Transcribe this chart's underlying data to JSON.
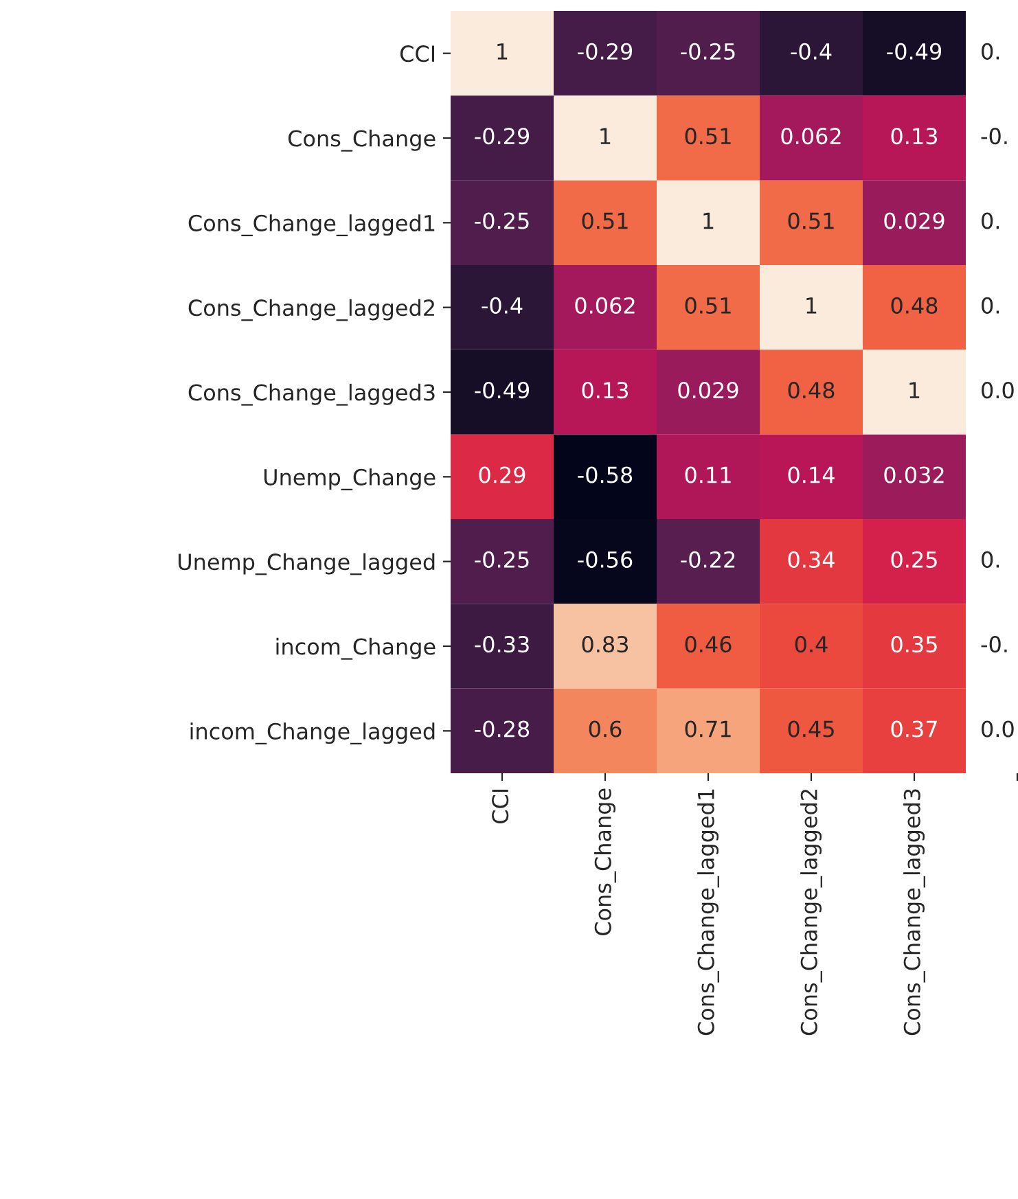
{
  "chart_data": {
    "type": "heatmap",
    "categories": [
      "CCI",
      "Cons_Change",
      "Cons_Change_lagged1",
      "Cons_Change_lagged2",
      "Cons_Change_lagged3",
      null
    ],
    "y_categories": [
      "CCI",
      "Cons_Change",
      "Cons_Change_lagged1",
      "Cons_Change_lagged2",
      "Cons_Change_lagged3",
      "Unemp_Change",
      "Unemp_Change_lagged",
      "incom_Change",
      "incom_Change_lagged"
    ],
    "cells": [
      [
        1,
        -0.29,
        -0.25,
        -0.4,
        -0.49,
        null
      ],
      [
        -0.29,
        1,
        0.51,
        0.062,
        0.13,
        null
      ],
      [
        -0.25,
        0.51,
        1,
        0.51,
        0.029,
        null
      ],
      [
        -0.4,
        0.062,
        0.51,
        1,
        0.48,
        null
      ],
      [
        -0.49,
        0.13,
        0.029,
        0.48,
        1,
        null
      ],
      [
        0.29,
        -0.58,
        0.11,
        0.14,
        0.032,
        null
      ],
      [
        -0.25,
        -0.56,
        -0.22,
        0.34,
        0.25,
        null
      ],
      [
        -0.33,
        0.83,
        0.46,
        0.4,
        0.35,
        null
      ],
      [
        -0.28,
        0.6,
        0.71,
        0.45,
        0.37,
        null
      ]
    ],
    "cell_labels": [
      [
        "1",
        "-0.29",
        "-0.25",
        "-0.4",
        "-0.49",
        "0."
      ],
      [
        "-0.29",
        "1",
        "0.51",
        "0.062",
        "0.13",
        "-0."
      ],
      [
        "-0.25",
        "0.51",
        "1",
        "0.51",
        "0.029",
        "0."
      ],
      [
        "-0.4",
        "0.062",
        "0.51",
        "1",
        "0.48",
        "0."
      ],
      [
        "-0.49",
        "0.13",
        "0.029",
        "0.48",
        "1",
        "0.0"
      ],
      [
        "0.29",
        "-0.58",
        "0.11",
        "0.14",
        "0.032",
        null
      ],
      [
        "-0.25",
        "-0.56",
        "-0.22",
        "0.34",
        "0.25",
        "0."
      ],
      [
        "-0.33",
        "0.83",
        "0.46",
        "0.4",
        "0.35",
        "-0."
      ],
      [
        "-0.28",
        "0.6",
        "0.71",
        "0.45",
        "0.37",
        "0.0"
      ]
    ],
    "data_labels": true
  }
}
